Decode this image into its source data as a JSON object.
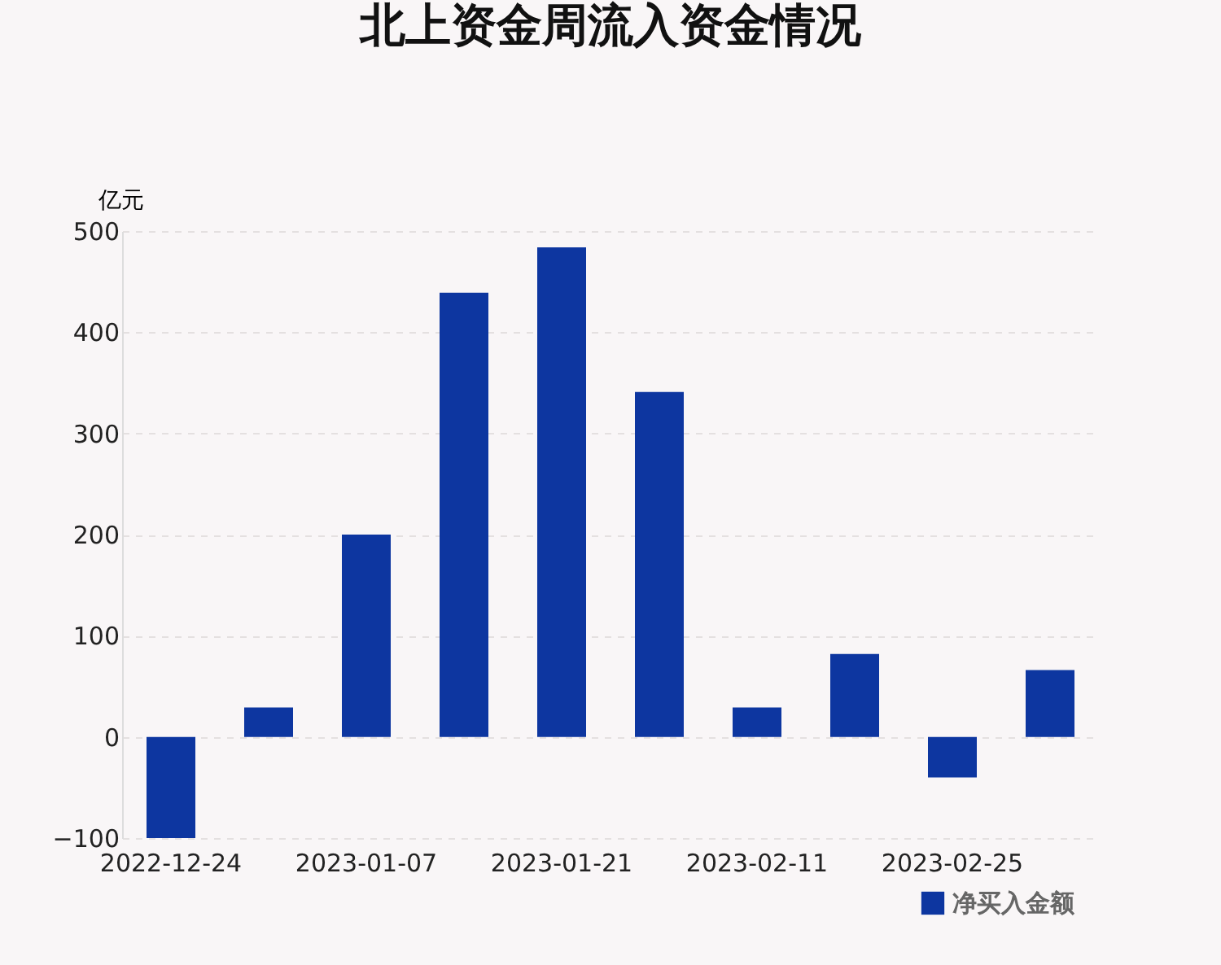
{
  "chart_data": {
    "type": "bar",
    "title": "北上资金周流入资金情况",
    "ylabel": "亿元",
    "categories": [
      "2022-12-24",
      null,
      "2023-01-07",
      null,
      "2023-01-21",
      null,
      "2023-02-11",
      null,
      "2023-02-25",
      null
    ],
    "series": [
      {
        "name": "净买入金额",
        "color": "#0d36a0",
        "values": [
          -100,
          29,
          200,
          439,
          484,
          341,
          29,
          82,
          -40,
          66
        ]
      }
    ],
    "ylim": [
      -100,
      500
    ],
    "yticks": [
      -100,
      0,
      100,
      200,
      300,
      400,
      500
    ],
    "grid": "y",
    "legend": "bottom right"
  }
}
